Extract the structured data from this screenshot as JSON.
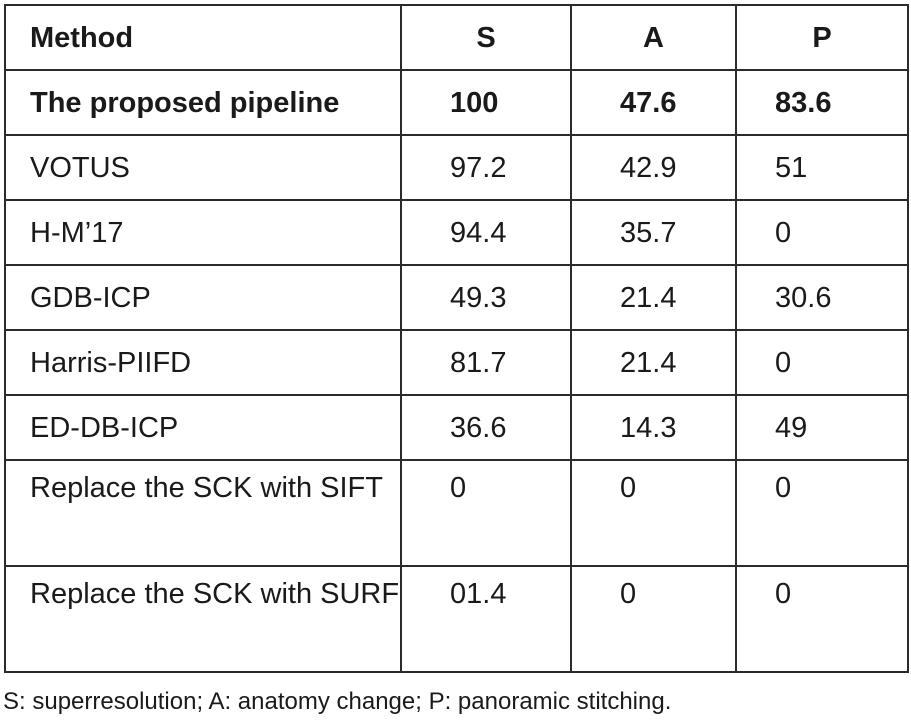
{
  "table": {
    "headers": {
      "method": "Method",
      "s": "S",
      "a": "A",
      "p": "P"
    },
    "rows": [
      {
        "method": "The proposed pipeline",
        "s": "100",
        "a": "47.6",
        "p": "83.6"
      },
      {
        "method": "VOTUS",
        "s": "97.2",
        "a": "42.9",
        "p": "51"
      },
      {
        "method": "H-M’17",
        "s": "94.4",
        "a": "35.7",
        "p": "0"
      },
      {
        "method": "GDB-ICP",
        "s": "49.3",
        "a": "21.4",
        "p": "30.6"
      },
      {
        "method": "Harris-PIIFD",
        "s": "81.7",
        "a": "21.4",
        "p": "0"
      },
      {
        "method": "ED-DB-ICP",
        "s": "36.6",
        "a": "14.3",
        "p": "49"
      },
      {
        "method": "Replace the SCK with SIFT",
        "s": "0",
        "a": "0",
        "p": "0"
      },
      {
        "method": "Replace the SCK with SURF",
        "s": "01.4",
        "a": "0",
        "p": "0"
      }
    ]
  },
  "footnote": "S: superresolution; A: anatomy change; P: panoramic stitching."
}
